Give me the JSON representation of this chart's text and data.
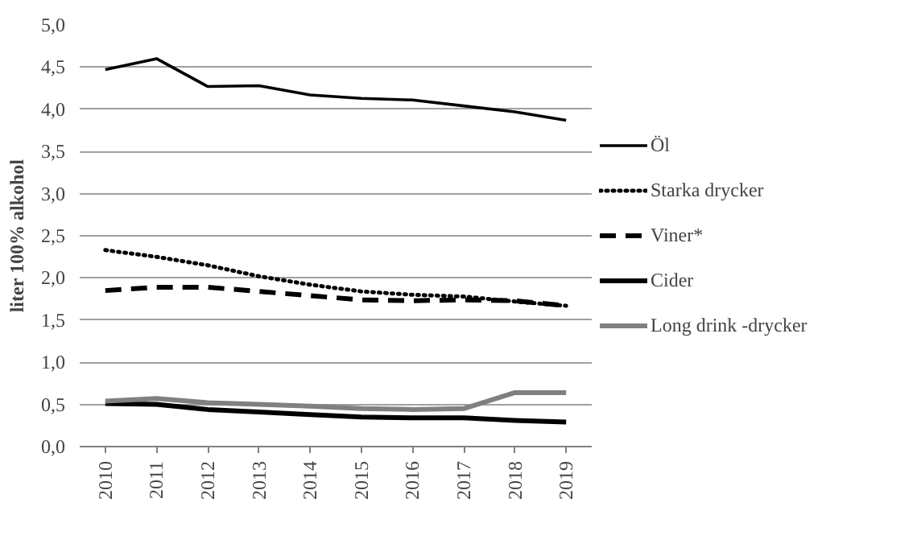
{
  "chart_data": {
    "type": "line",
    "ylabel": "liter 100% alkohol",
    "categories": [
      "2010",
      "2011",
      "2012",
      "2013",
      "2014",
      "2015",
      "2016",
      "2017",
      "2018",
      "2019"
    ],
    "series": [
      {
        "name": "Öl",
        "color": "#000000",
        "line_style": "solid",
        "values": [
          4.47,
          4.6,
          4.27,
          4.28,
          4.17,
          4.13,
          4.11,
          4.04,
          3.97,
          3.87
        ]
      },
      {
        "name": "Starka drycker",
        "color": "#000000",
        "line_style": "dotted",
        "values": [
          2.33,
          2.25,
          2.15,
          2.02,
          1.92,
          1.84,
          1.8,
          1.78,
          1.72,
          1.67
        ]
      },
      {
        "name": "Viner*",
        "color": "#000000",
        "line_style": "dashed",
        "values": [
          1.85,
          1.89,
          1.89,
          1.84,
          1.79,
          1.74,
          1.73,
          1.74,
          1.73,
          1.67
        ]
      },
      {
        "name": "Cider",
        "color": "#000000",
        "line_style": "solid",
        "values": [
          0.51,
          0.5,
          0.44,
          0.41,
          0.38,
          0.35,
          0.34,
          0.34,
          0.31,
          0.29
        ]
      },
      {
        "name": "Long drink -drycker",
        "color": "#808080",
        "line_style": "solid",
        "values": [
          0.54,
          0.57,
          0.52,
          0.5,
          0.48,
          0.45,
          0.44,
          0.45,
          0.64,
          0.64
        ]
      }
    ],
    "ylim": [
      0,
      5
    ],
    "yticks": [
      {
        "value": 0,
        "label": "0,0"
      },
      {
        "value": 0.5,
        "label": "0,5"
      },
      {
        "value": 1,
        "label": "1,0"
      },
      {
        "value": 1.5,
        "label": "1,5"
      },
      {
        "value": 2,
        "label": "2,0"
      },
      {
        "value": 2.5,
        "label": "2,5"
      },
      {
        "value": 3,
        "label": "3,0"
      },
      {
        "value": 3.5,
        "label": "3,5"
      },
      {
        "value": 4,
        "label": "4,0"
      },
      {
        "value": 4.5,
        "label": "4,5"
      },
      {
        "value": 5,
        "label": "5,0"
      }
    ],
    "grid": "y",
    "legend": "right",
    "marker": "none"
  }
}
